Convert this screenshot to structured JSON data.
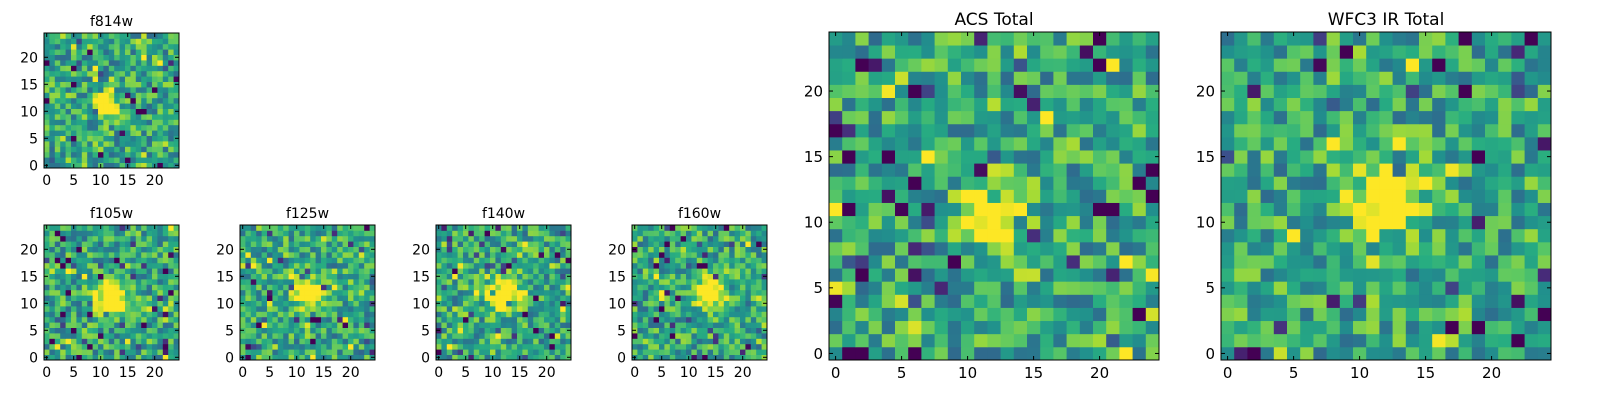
{
  "chart_data": [
    {
      "type": "heatmap",
      "title": "f814w",
      "xlabel": "",
      "ylabel": "",
      "xlim": [
        0,
        25
      ],
      "ylim": [
        0,
        25
      ],
      "xticks": [
        "0",
        "5",
        "10",
        "15",
        "20"
      ],
      "yticks": [
        "0",
        "5",
        "10",
        "15",
        "20"
      ],
      "grid_size": [
        25,
        25
      ],
      "colormap": "viridis",
      "source_center": [
        11,
        11
      ],
      "source_radius": 1.5,
      "noise_seed": 11
    },
    {
      "type": "heatmap",
      "title": "f105w",
      "xlabel": "",
      "ylabel": "",
      "xlim": [
        0,
        25
      ],
      "ylim": [
        0,
        25
      ],
      "xticks": [
        "0",
        "5",
        "10",
        "15",
        "20"
      ],
      "yticks": [
        "0",
        "5",
        "10",
        "15",
        "20"
      ],
      "grid_size": [
        25,
        25
      ],
      "colormap": "viridis",
      "source_center": [
        12,
        11
      ],
      "source_radius": 2.0,
      "noise_seed": 23
    },
    {
      "type": "heatmap",
      "title": "f125w",
      "xlabel": "",
      "ylabel": "",
      "xlim": [
        0,
        25
      ],
      "ylim": [
        0,
        25
      ],
      "xticks": [
        "0",
        "5",
        "10",
        "15",
        "20"
      ],
      "yticks": [
        "0",
        "5",
        "10",
        "15",
        "20"
      ],
      "grid_size": [
        25,
        25
      ],
      "colormap": "viridis",
      "source_center": [
        12,
        12
      ],
      "source_radius": 1.8,
      "noise_seed": 37
    },
    {
      "type": "heatmap",
      "title": "f140w",
      "xlabel": "",
      "ylabel": "",
      "xlim": [
        0,
        25
      ],
      "ylim": [
        0,
        25
      ],
      "xticks": [
        "0",
        "5",
        "10",
        "15",
        "20"
      ],
      "yticks": [
        "0",
        "5",
        "10",
        "15",
        "20"
      ],
      "grid_size": [
        25,
        25
      ],
      "colormap": "viridis",
      "source_center": [
        12,
        12
      ],
      "source_radius": 2.0,
      "noise_seed": 41
    },
    {
      "type": "heatmap",
      "title": "f160w",
      "xlabel": "",
      "ylabel": "",
      "xlim": [
        0,
        25
      ],
      "ylim": [
        0,
        25
      ],
      "xticks": [
        "0",
        "5",
        "10",
        "15",
        "20"
      ],
      "yticks": [
        "0",
        "5",
        "10",
        "15",
        "20"
      ],
      "grid_size": [
        25,
        25
      ],
      "colormap": "viridis",
      "source_center": [
        14,
        12
      ],
      "source_radius": 1.8,
      "noise_seed": 53
    },
    {
      "type": "heatmap",
      "title": "ACS Total",
      "xlabel": "",
      "ylabel": "",
      "xlim": [
        0,
        25
      ],
      "ylim": [
        0,
        25
      ],
      "xticks": [
        "0",
        "5",
        "10",
        "15",
        "20"
      ],
      "yticks": [
        "0",
        "5",
        "10",
        "15",
        "20"
      ],
      "grid_size": [
        25,
        25
      ],
      "colormap": "viridis",
      "source_center": [
        12,
        11
      ],
      "source_radius": 1.6,
      "noise_seed": 67
    },
    {
      "type": "heatmap",
      "title": "WFC3 IR Total",
      "xlabel": "",
      "ylabel": "",
      "xlim": [
        0,
        25
      ],
      "ylim": [
        0,
        25
      ],
      "xticks": [
        "0",
        "5",
        "10",
        "15",
        "20"
      ],
      "yticks": [
        "0",
        "5",
        "10",
        "15",
        "20"
      ],
      "grid_size": [
        25,
        25
      ],
      "colormap": "viridis",
      "source_center": [
        12,
        12
      ],
      "source_radius": 1.8,
      "noise_seed": 79
    }
  ]
}
